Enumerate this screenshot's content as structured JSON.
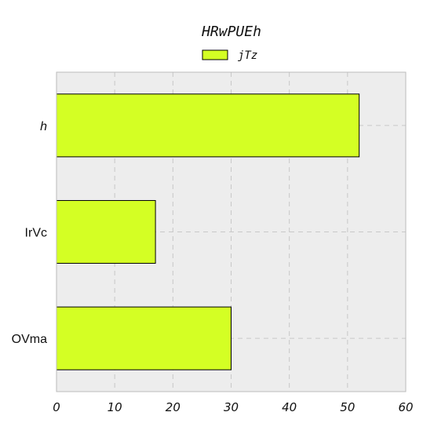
{
  "chart_data": {
    "type": "bar",
    "orientation": "horizontal",
    "title": "HRwPUEh",
    "xlabel": "",
    "ylabel": "",
    "categories": [
      "h",
      "IrVc",
      "OVma"
    ],
    "series": [
      {
        "name": "jTz",
        "values": [
          52,
          17,
          30
        ]
      }
    ],
    "xlim": [
      0,
      60
    ],
    "xticks": [
      "0",
      "10",
      "20",
      "30",
      "40",
      "50",
      "60"
    ],
    "grid": true,
    "legend_position": "top-center",
    "colors": {
      "bar_fill": "#d4ff24",
      "bar_edge": "#000000",
      "plot_background": "#ededed",
      "axes_edge": "#bbbbbb"
    }
  }
}
